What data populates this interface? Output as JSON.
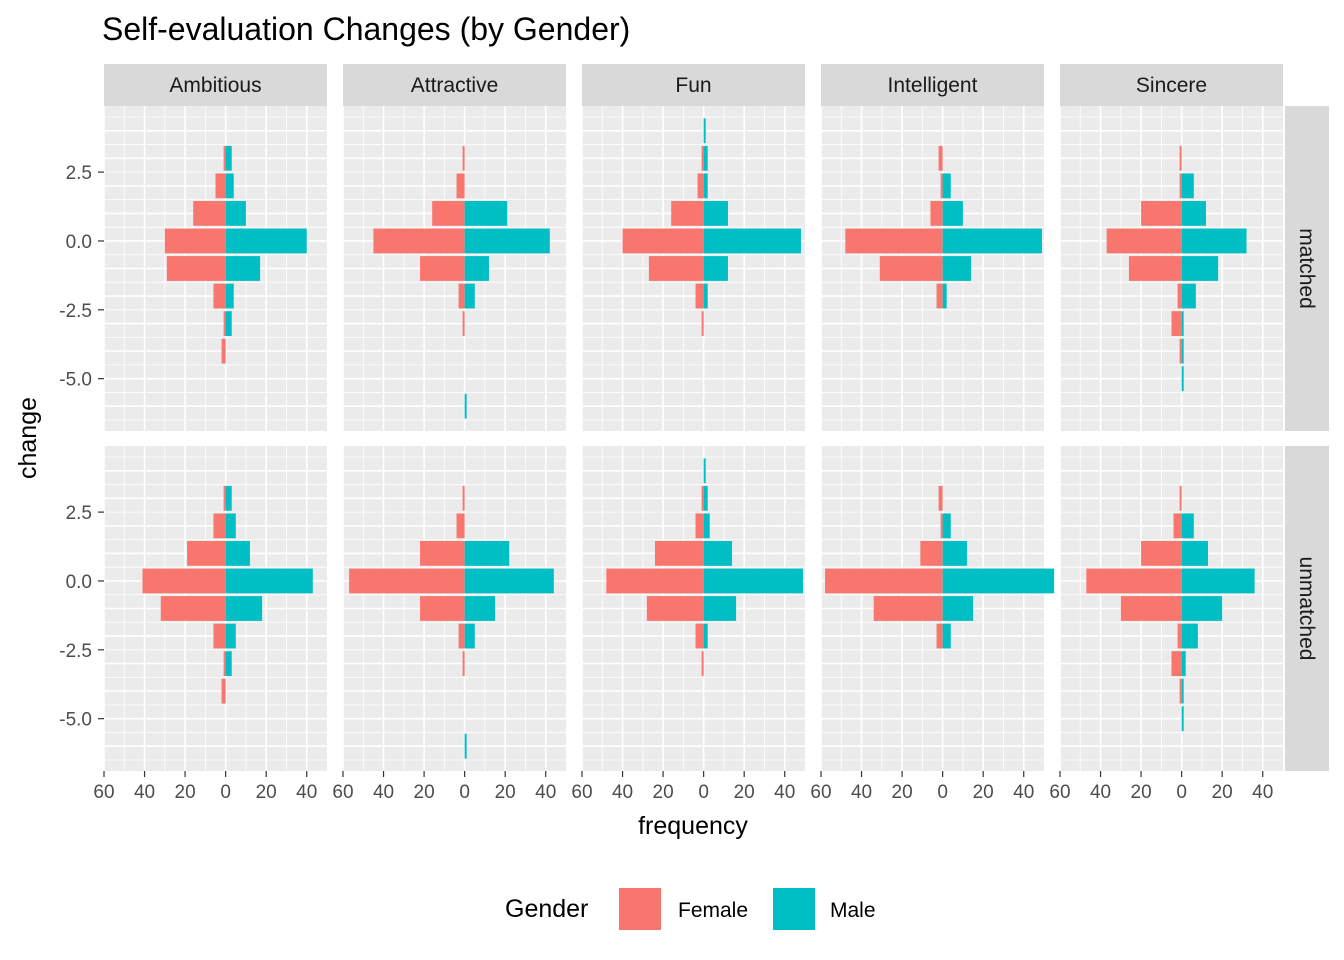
{
  "chart_data": {
    "type": "bar",
    "orientation": "horizontal",
    "title": "Self-evaluation Changes (by Gender)",
    "xlabel": "frequency",
    "ylabel": "change",
    "xlim": [
      -60,
      50
    ],
    "ylim": [
      -6.9,
      4.9
    ],
    "x_ticks": [
      -60,
      -40,
      -20,
      0,
      20,
      40
    ],
    "x_tick_labels": [
      "60",
      "40",
      "20",
      "0",
      "20",
      "40"
    ],
    "y_ticks": [
      2.5,
      0.0,
      -2.5,
      -5.0
    ],
    "y_tick_labels": [
      "2.5",
      "0.0",
      "-2.5",
      "-5.0"
    ],
    "grid": true,
    "legend": {
      "title": "Gender",
      "placement": "bottom",
      "entries": [
        {
          "name": "Female",
          "color": "#F8766D"
        },
        {
          "name": "Male",
          "color": "#00BFC4"
        }
      ]
    },
    "facet_cols": [
      "Ambitious",
      "Attractive",
      "Fun",
      "Intelligent",
      "Sincere"
    ],
    "facet_rows": [
      "matched",
      "unmatched"
    ],
    "change_levels": [
      4,
      3,
      2,
      1,
      0,
      -1,
      -2,
      -3,
      -4,
      -5,
      -6
    ],
    "series": [
      {
        "name": "Female",
        "color": "#F8766D",
        "values": {
          "matched": {
            "Ambitious": [
              0,
              1,
              5,
              16,
              30,
              29,
              6,
              1,
              2,
              0,
              0
            ],
            "Attractive": [
              0,
              1,
              4,
              16,
              45,
              22,
              3,
              1,
              0,
              0,
              0
            ],
            "Fun": [
              0,
              1,
              3,
              16,
              40,
              27,
              4,
              1,
              0,
              0,
              0
            ],
            "Intelligent": [
              0,
              2,
              1,
              6,
              48,
              31,
              3,
              0,
              0,
              0,
              0
            ],
            "Sincere": [
              0,
              1,
              1,
              20,
              37,
              26,
              2,
              5,
              1,
              0,
              0
            ]
          },
          "unmatched": {
            "Ambitious": [
              0,
              1,
              6,
              19,
              41,
              32,
              6,
              1,
              2,
              0,
              0
            ],
            "Attractive": [
              0,
              1,
              4,
              22,
              57,
              22,
              3,
              1,
              0,
              0,
              0
            ],
            "Fun": [
              0,
              1,
              4,
              24,
              48,
              28,
              4,
              1,
              0,
              0,
              0
            ],
            "Intelligent": [
              0,
              2,
              1,
              11,
              58,
              34,
              3,
              0,
              0,
              0,
              0
            ],
            "Sincere": [
              0,
              1,
              4,
              20,
              47,
              30,
              2,
              5,
              1,
              0,
              0
            ]
          }
        }
      },
      {
        "name": "Male",
        "color": "#00BFC4",
        "values": {
          "matched": {
            "Ambitious": [
              0,
              3,
              4,
              10,
              40,
              17,
              4,
              3,
              0,
              0,
              0
            ],
            "Attractive": [
              0,
              0,
              0,
              21,
              42,
              12,
              5,
              0,
              0,
              0,
              1
            ],
            "Fun": [
              1,
              2,
              2,
              12,
              48,
              12,
              2,
              0,
              0,
              0,
              0
            ],
            "Intelligent": [
              0,
              0,
              4,
              10,
              49,
              14,
              2,
              0,
              0,
              0,
              0
            ],
            "Sincere": [
              0,
              0,
              6,
              12,
              32,
              18,
              7,
              1,
              1,
              1,
              0
            ]
          },
          "unmatched": {
            "Ambitious": [
              0,
              3,
              5,
              12,
              43,
              18,
              5,
              3,
              0,
              0,
              0
            ],
            "Attractive": [
              0,
              0,
              0,
              22,
              44,
              15,
              5,
              0,
              0,
              0,
              1
            ],
            "Fun": [
              1,
              2,
              3,
              14,
              49,
              16,
              2,
              0,
              0,
              0,
              0
            ],
            "Intelligent": [
              0,
              0,
              4,
              12,
              55,
              15,
              4,
              0,
              0,
              0,
              0
            ],
            "Sincere": [
              0,
              0,
              6,
              13,
              36,
              20,
              8,
              2,
              1,
              1,
              0
            ]
          }
        }
      }
    ]
  }
}
